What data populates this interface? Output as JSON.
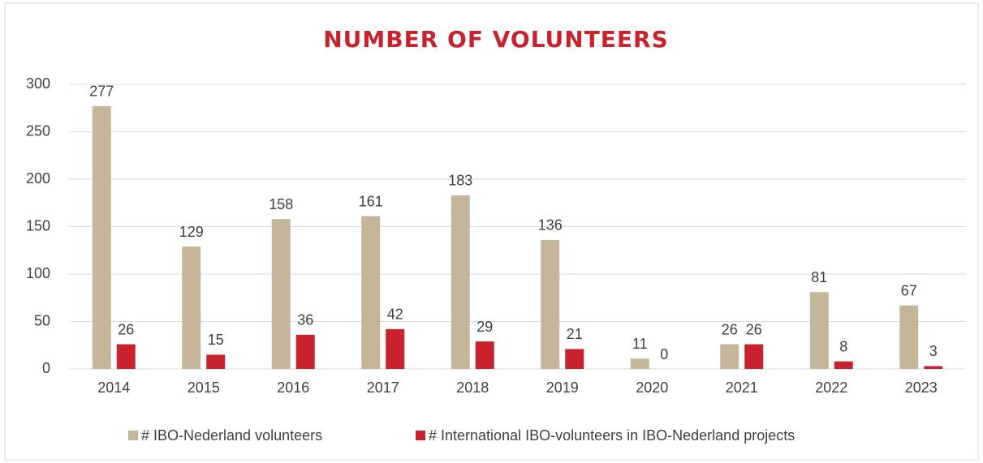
{
  "chart_data": {
    "type": "bar",
    "title": "NUMBER OF VOLUNTEERS",
    "categories": [
      "2014",
      "2015",
      "2016",
      "2017",
      "2018",
      "2019",
      "2020",
      "2021",
      "2022",
      "2023"
    ],
    "series": [
      {
        "name": "# IBO-Nederland volunteers",
        "color": "#c4b59b",
        "values": [
          277,
          129,
          158,
          161,
          183,
          136,
          11,
          26,
          81,
          67
        ]
      },
      {
        "name": "# International IBO-volunteers in IBO-Nederland projects",
        "color": "#c8232c",
        "values": [
          26,
          15,
          36,
          42,
          29,
          21,
          0,
          26,
          8,
          3
        ]
      }
    ],
    "ylim": [
      0,
      300
    ],
    "yticks": [
      0,
      50,
      100,
      150,
      200,
      250,
      300
    ],
    "grid": true,
    "legend": "bottom"
  }
}
